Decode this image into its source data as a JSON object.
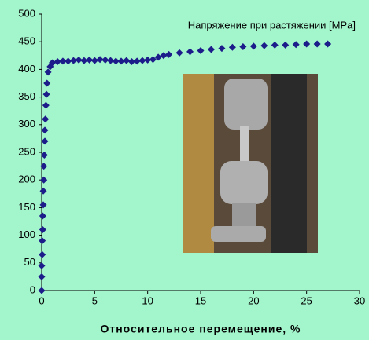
{
  "chart_data": {
    "type": "scatter",
    "annotation": "Напряжение при растяжении [MPa]",
    "x_label": "Относительное перемещение, %",
    "color": "#1c1c8a",
    "x": [
      0,
      0,
      0,
      0.05,
      0.05,
      0.1,
      0.1,
      0.15,
      0.15,
      0.2,
      0.2,
      0.25,
      0.3,
      0.3,
      0.35,
      0.4,
      0.45,
      0.5,
      0.6,
      0.8,
      1,
      1.5,
      2,
      2.5,
      3,
      3.5,
      4,
      4.5,
      5,
      5.5,
      6,
      6.5,
      7,
      7.5,
      8,
      8.5,
      9,
      9.5,
      10,
      10.5,
      11,
      11.5,
      12,
      13,
      14,
      15,
      16,
      17,
      18,
      19,
      20,
      21,
      22,
      23,
      24,
      25,
      26,
      27
    ],
    "values": [
      0,
      25,
      45,
      65,
      90,
      110,
      135,
      155,
      180,
      200,
      225,
      245,
      270,
      290,
      310,
      335,
      355,
      375,
      395,
      405,
      412,
      414,
      415,
      415,
      416,
      417,
      416,
      417,
      416,
      418,
      417,
      416,
      415,
      415,
      416,
      414,
      415,
      416,
      417,
      418,
      422,
      425,
      427,
      430,
      432,
      434,
      436,
      438,
      440,
      441,
      442,
      443,
      444,
      444,
      445,
      446,
      446,
      446
    ],
    "xlim": [
      0,
      30
    ],
    "xticks": [
      0,
      5,
      10,
      15,
      20,
      25,
      30
    ],
    "ylim": [
      0,
      500
    ],
    "yticks": [
      0,
      50,
      100,
      150,
      200,
      250,
      300,
      350,
      400,
      450,
      500
    ]
  }
}
